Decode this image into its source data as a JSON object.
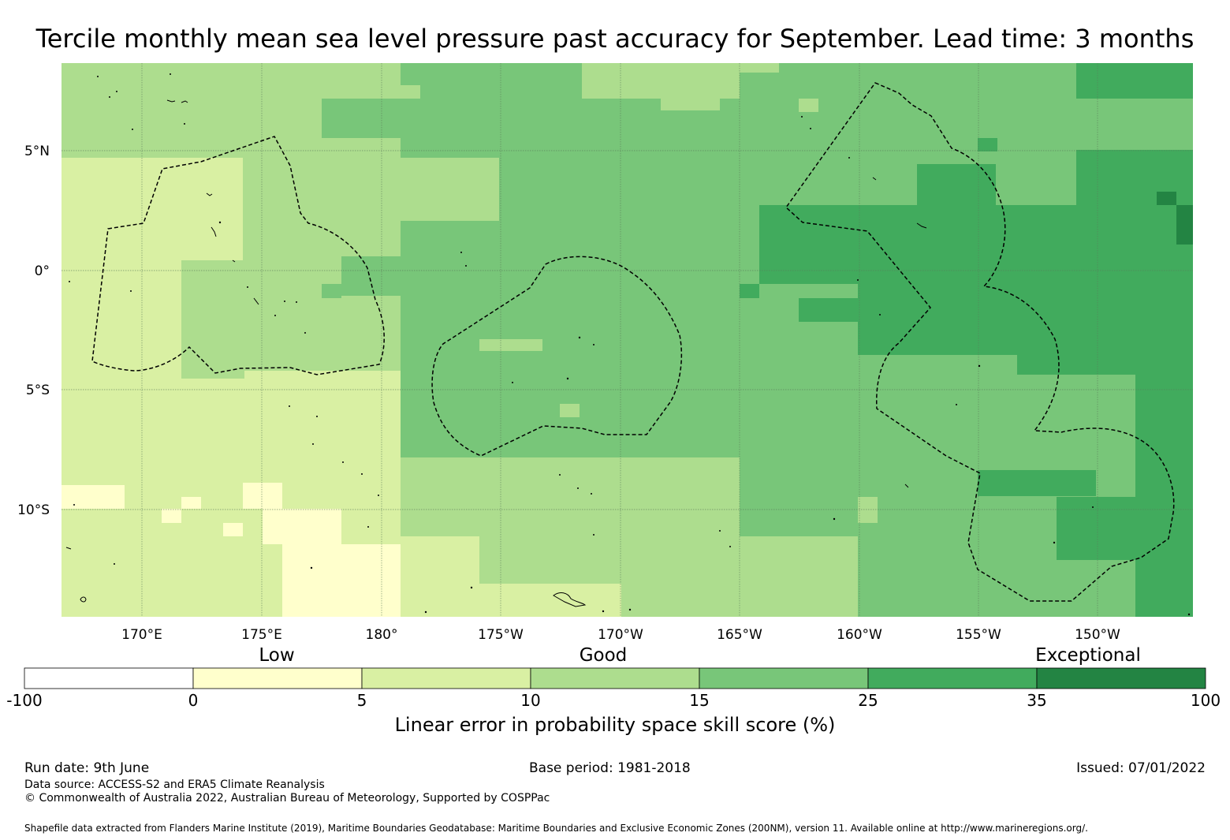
{
  "title": "Tercile monthly mean sea level pressure past accuracy for September. Lead time: 3 months",
  "map": {
    "lon_ticks": [
      "170°E",
      "175°E",
      "180°",
      "175°W",
      "170°W",
      "165°W",
      "160°W",
      "155°W",
      "150°W"
    ],
    "lat_ticks": [
      "5°N",
      "0°",
      "5°S",
      "10°S"
    ]
  },
  "colorbar": {
    "categories": [
      "Low",
      "Good",
      "Exceptional"
    ],
    "ticks": [
      "-100",
      "0",
      "5",
      "10",
      "15",
      "25",
      "35",
      "100"
    ],
    "colors": [
      "#ffffff",
      "#ffffcc",
      "#d9f0a3",
      "#addd8e",
      "#78c679",
      "#41ab5d",
      "#238443"
    ],
    "label": "Linear error in probability space skill score (%)"
  },
  "footer": {
    "run_date": "Run date: 9th June",
    "base_period": "Base period: 1981-2018",
    "issued": "Issued: 07/01/2022",
    "data_source": "Data source: ACCESS-S2 and ERA5 Climate Reanalysis",
    "copyright": "© Commonwealth of Australia 2022, Australian Bureau of Meteorology, Supported by COSPPac",
    "shapefile": "Shapefile data extracted from Flanders Marine Institute (2019), Maritime Boundaries Geodatabase: Maritime Boundaries and Exclusive Economic Zones (200NM), version 11. Available online at http://www.marineregions.org/."
  }
}
